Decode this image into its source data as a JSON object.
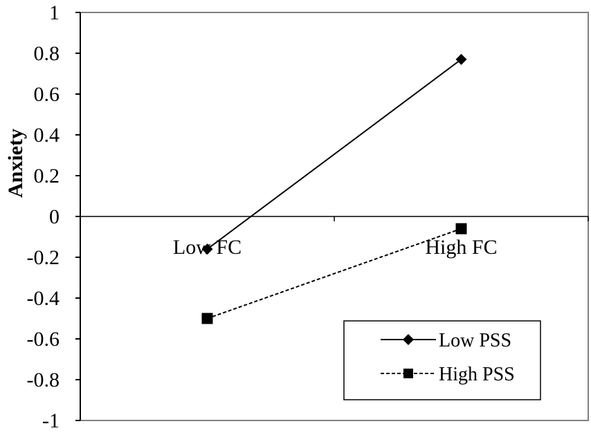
{
  "chart_data": {
    "type": "line",
    "title": "",
    "xlabel": "",
    "ylabel": "Anxiety",
    "categories": [
      "Low FC",
      "High FC"
    ],
    "ylim": [
      -1,
      1
    ],
    "yticks": [
      1,
      0.8,
      0.6,
      0.4,
      0.2,
      0,
      -0.2,
      -0.4,
      -0.6,
      -0.8,
      -1
    ],
    "ytick_labels": [
      "1",
      "0.8",
      "0.6",
      "0.4",
      "0.2",
      "0",
      "-0.2",
      "-0.4",
      "-0.6",
      "-0.8",
      "-1"
    ],
    "grid": false,
    "legend_position": "bottom-right",
    "series": [
      {
        "name": "Low PSS",
        "values": [
          -0.16,
          0.77
        ],
        "marker": "diamond",
        "line": "solid",
        "color": "#000000"
      },
      {
        "name": "High PSS",
        "values": [
          -0.5,
          -0.06
        ],
        "marker": "square",
        "line": "dashed",
        "color": "#000000"
      }
    ]
  }
}
